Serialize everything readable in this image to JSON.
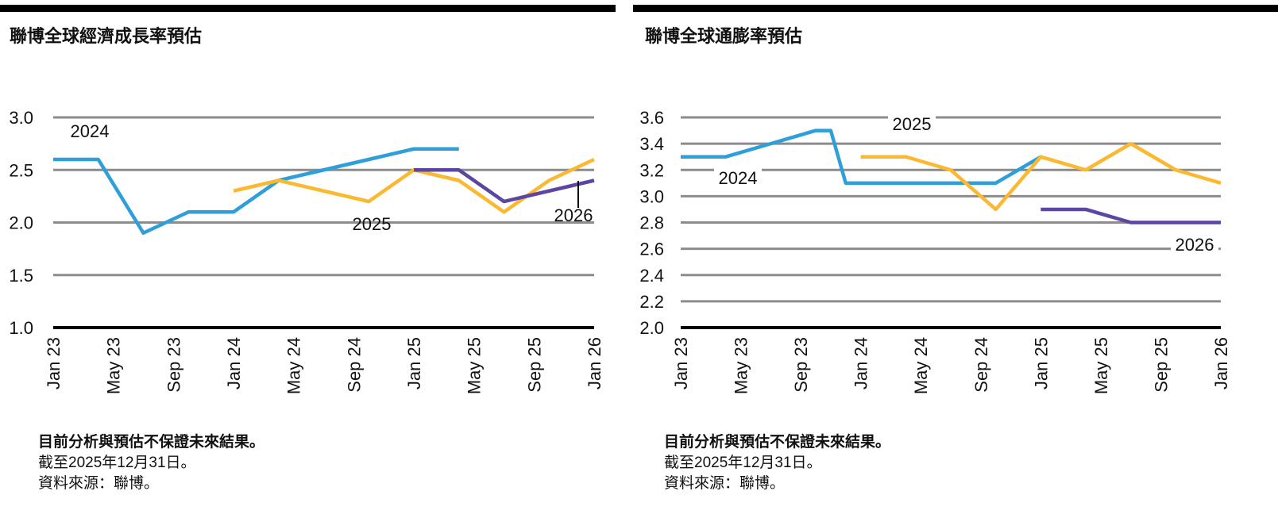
{
  "chart_data": [
    {
      "type": "line",
      "title": "聯博全球經濟成長率預估",
      "xlim": [
        "Jan 23",
        "Jan 26"
      ],
      "xticks": [
        "Jan 23",
        "May 23",
        "Sep 23",
        "Jan 24",
        "May 24",
        "Sep 24",
        "Jan 25",
        "May 25",
        "Sep 25",
        "Jan 26"
      ],
      "ylim": [
        1.0,
        3.0
      ],
      "yticks": [
        {
          "value": 1.0,
          "label": "1.0"
        },
        1.5,
        {
          "value": 2.0,
          "label": "2.0"
        },
        2.5,
        {
          "value": 3.0,
          "label": "3.0"
        }
      ],
      "grid": true,
      "series": [
        {
          "name": "2024",
          "color": "#2e9fd9",
          "x": [
            "Jan 23",
            "Apr 23",
            "Jul 23",
            "Oct 23",
            "Jan 24",
            "Apr 24",
            "Jul 24",
            "Oct 24",
            "Jan 25",
            "Apr 25"
          ],
          "values": [
            2.6,
            2.6,
            1.9,
            2.1,
            2.1,
            2.4,
            2.5,
            2.6,
            2.7,
            2.7
          ]
        },
        {
          "name": "2025",
          "color": "#fbb931",
          "x": [
            "Jan 24",
            "Apr 24",
            "Jul 24",
            "Oct 24",
            "Jan 25",
            "Apr 25",
            "Jul 25",
            "Oct 25",
            "Jan 26"
          ],
          "values": [
            2.3,
            2.4,
            2.3,
            2.2,
            2.5,
            2.4,
            2.1,
            2.4,
            2.6
          ]
        },
        {
          "name": "2026",
          "color": "#5b47a3",
          "x": [
            "Jan 25",
            "Apr 25",
            "Jul 25",
            "Oct 25",
            "Jan 26"
          ],
          "values": [
            2.5,
            2.5,
            2.2,
            2.3,
            2.4
          ]
        }
      ],
      "notes": [
        "目前分析與預估不保證未來結果。",
        "截至2025年12月31日。",
        "資料來源：聯博。"
      ]
    },
    {
      "type": "line",
      "title": "聯博全球通膨率預估",
      "xlim": [
        "Jan 23",
        "Jan 26"
      ],
      "xticks": [
        "Jan 23",
        "May 23",
        "Sep 23",
        "Jan 24",
        "May 24",
        "Sep 24",
        "Jan 25",
        "May 25",
        "Sep 25",
        "Jan 26"
      ],
      "ylim": [
        2.0,
        3.6
      ],
      "yticks": [
        {
          "value": 2.0,
          "label": "2.0"
        },
        2.2,
        2.4,
        2.6,
        2.8,
        {
          "value": 3.0,
          "label": "3.0"
        },
        3.2,
        3.4,
        3.6
      ],
      "grid": true,
      "series": [
        {
          "name": "2024",
          "color": "#2e9fd9",
          "x": [
            "Jan 23",
            "Apr 23",
            "Jul 23",
            "Oct 23",
            "Nov 23",
            "Dec 23",
            "Oct 24",
            "Jan 25"
          ],
          "values": [
            3.3,
            3.3,
            3.4,
            3.5,
            3.5,
            3.1,
            3.1,
            3.3
          ]
        },
        {
          "name": "2025",
          "color": "#fbb931",
          "x": [
            "Jan 24",
            "Apr 24",
            "Jul 24",
            "Oct 24",
            "Jan 25",
            "Apr 25",
            "Jul 25",
            "Oct 25",
            "Jan 26"
          ],
          "values": [
            3.3,
            3.3,
            3.2,
            2.9,
            3.3,
            3.2,
            3.4,
            3.2,
            3.1
          ]
        },
        {
          "name": "2026",
          "color": "#5b47a3",
          "x": [
            "Jan 25",
            "Apr 25",
            "Jul 25",
            "Oct 25",
            "Jan 26"
          ],
          "values": [
            2.9,
            2.9,
            2.8,
            2.8,
            2.8
          ]
        }
      ],
      "notes": [
        "目前分析與預估不保證未來結果。",
        "截至2025年12月31日。",
        "資料來源：聯博。"
      ]
    }
  ]
}
